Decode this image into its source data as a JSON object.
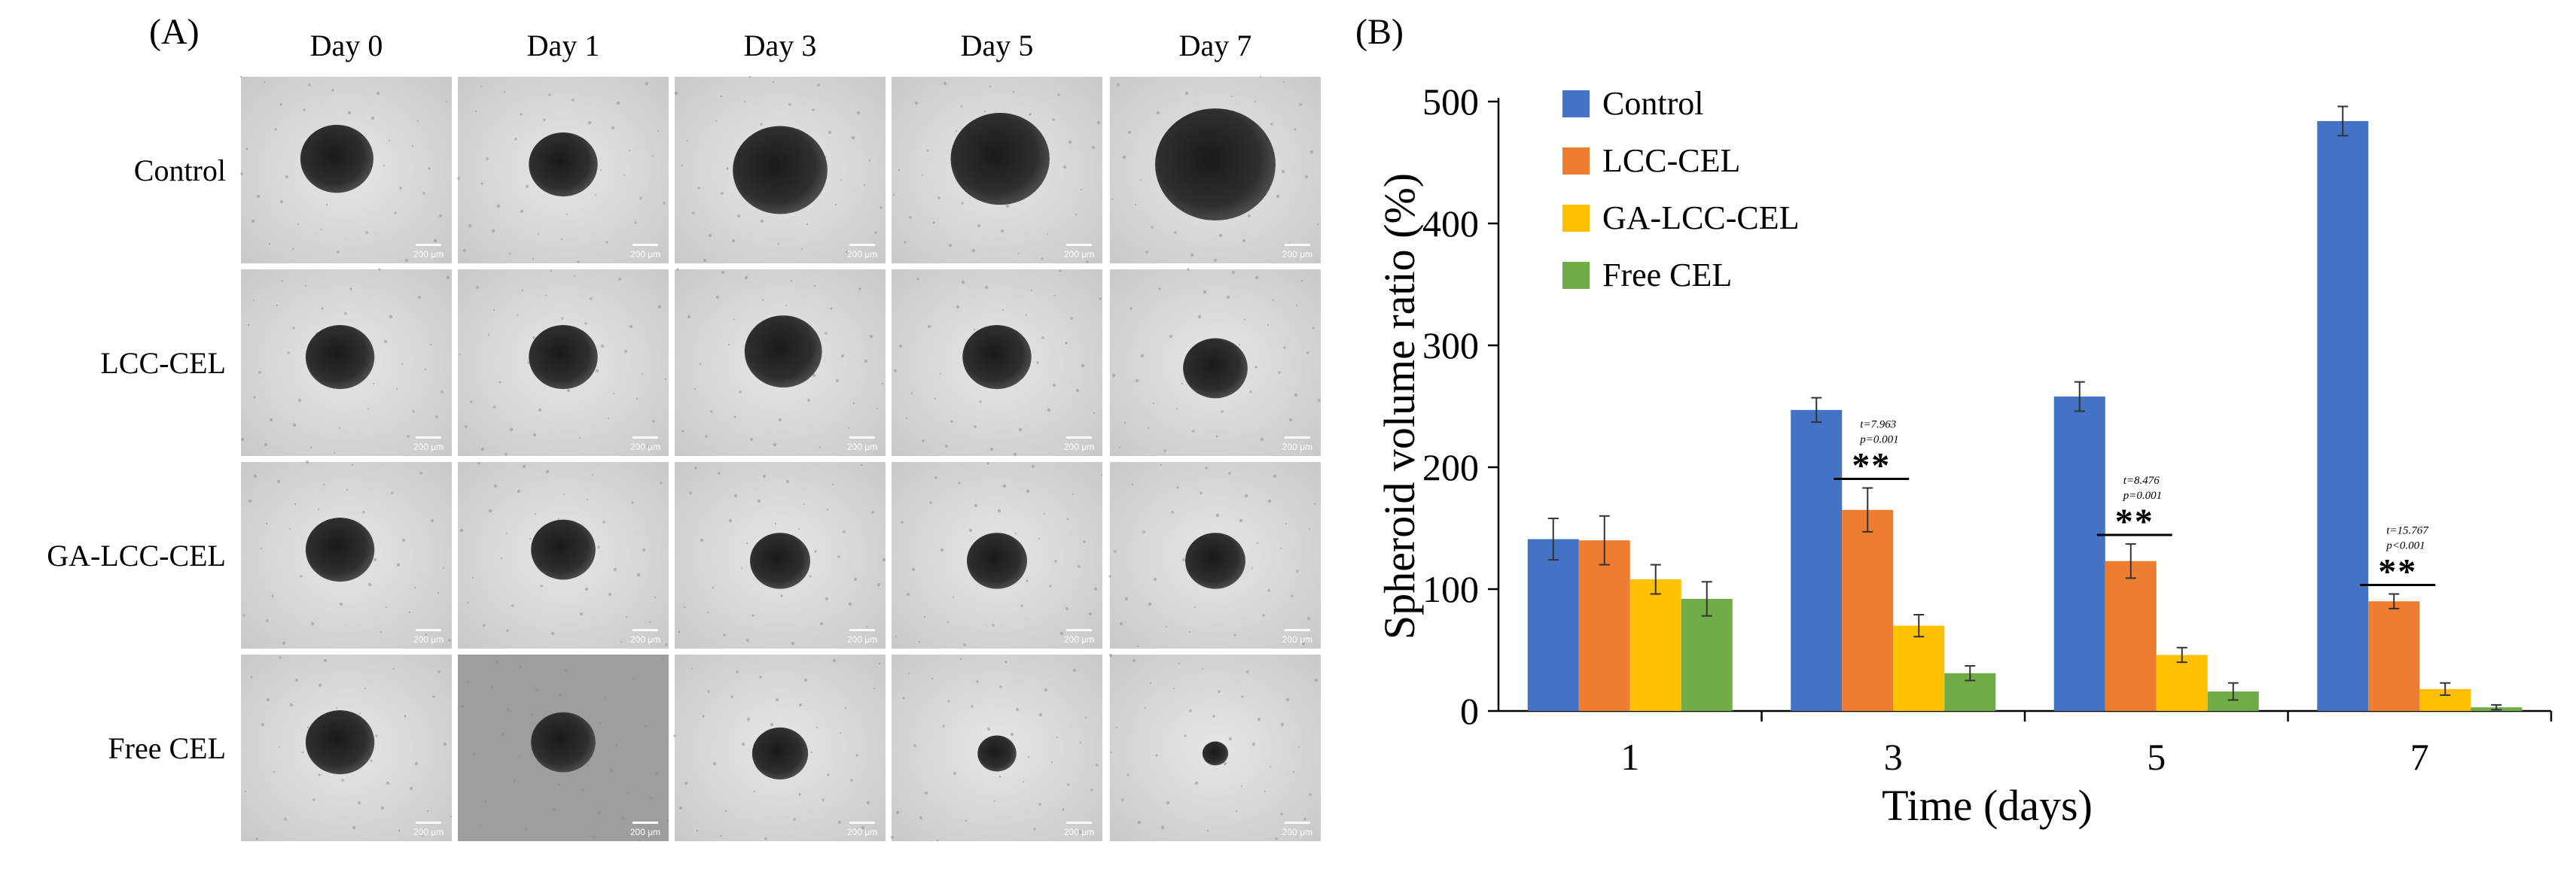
{
  "panel_a": {
    "label": "(A)",
    "columns": [
      "Day 0",
      "Day 1",
      "Day 3",
      "Day 5",
      "Day 7"
    ],
    "rows": [
      "Control",
      "LCC-CEL",
      "GA-LCC-CEL",
      "Free CEL"
    ],
    "scale_bar": "200 μm"
  },
  "panel_b": {
    "label": "(B)"
  },
  "colors": {
    "Control": "#4472C4",
    "LCC-CEL": "#ED7D31",
    "GA-LCC-CEL": "#FFC000",
    "Free CEL": "#70AD47"
  },
  "chart_data": {
    "type": "bar",
    "title": "",
    "xlabel": "Time (days)",
    "ylabel": "Spheroid volume ratio (%)",
    "ylim": [
      0,
      500
    ],
    "yticks": [
      0,
      100,
      200,
      300,
      400,
      500
    ],
    "categories": [
      "1",
      "3",
      "5",
      "7"
    ],
    "legend_position": "top-left",
    "grid": false,
    "series": [
      {
        "name": "Control",
        "values": [
          141,
          247,
          258,
          484
        ],
        "errors": [
          17,
          10,
          12,
          12
        ]
      },
      {
        "name": "LCC-CEL",
        "values": [
          140,
          165,
          123,
          90
        ],
        "errors": [
          20,
          18,
          14,
          6
        ]
      },
      {
        "name": "GA-LCC-CEL",
        "values": [
          108,
          70,
          46,
          18
        ],
        "errors": [
          12,
          9,
          6,
          5
        ]
      },
      {
        "name": "Free CEL",
        "values": [
          92,
          31,
          16,
          3
        ],
        "errors": [
          14,
          6,
          7,
          2
        ]
      }
    ],
    "annotations": [
      {
        "category": "3",
        "stat": "t=7.963",
        "p": "p=0.001",
        "sig": "**"
      },
      {
        "category": "5",
        "stat": "t=8.476",
        "p": "p=0.001",
        "sig": "**"
      },
      {
        "category": "7",
        "stat": "t=15.767",
        "p": "p<0.001",
        "sig": "**"
      }
    ]
  }
}
